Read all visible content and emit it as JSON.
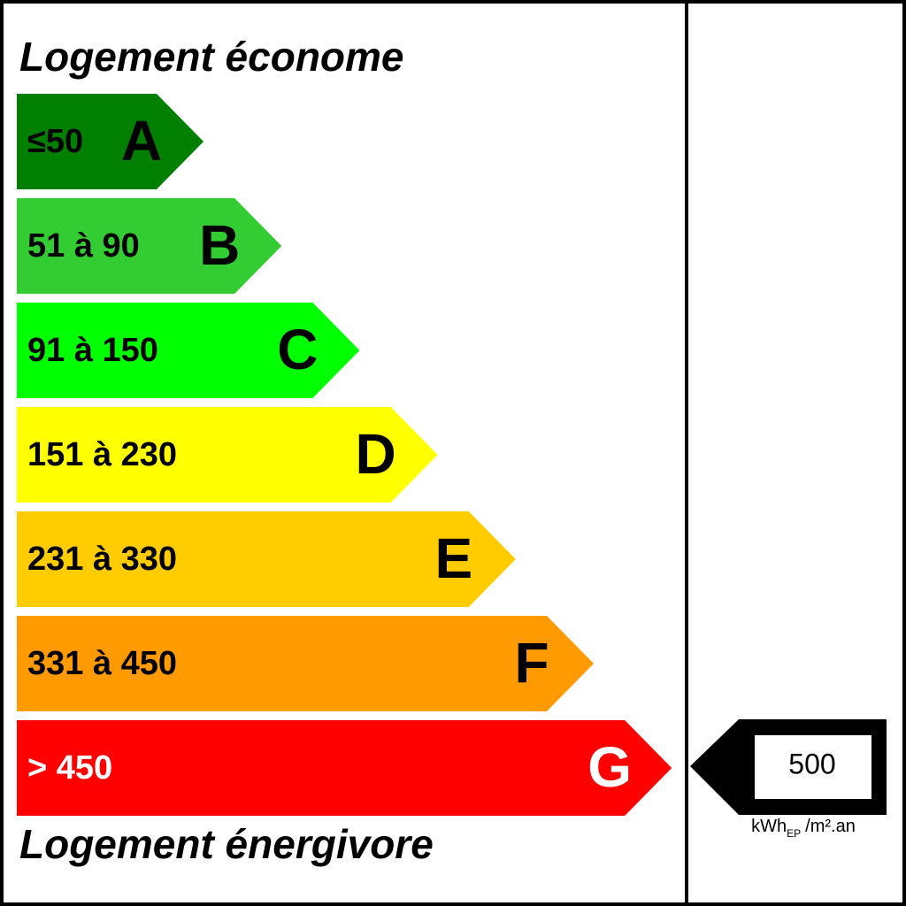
{
  "header": {
    "title": "Logement économe"
  },
  "footer": {
    "title": "Logement énergivore"
  },
  "classes": [
    {
      "range": "≤50",
      "letter": "A",
      "color": "#007f00",
      "text_color": "#000000"
    },
    {
      "range": "51 à 90",
      "letter": "B",
      "color": "#33cc33",
      "text_color": "#000000"
    },
    {
      "range": "91 à 150",
      "letter": "C",
      "color": "#00ff00",
      "text_color": "#000000"
    },
    {
      "range": "151 à 230",
      "letter": "D",
      "color": "#ffff00",
      "text_color": "#000000"
    },
    {
      "range": "231 à 330",
      "letter": "E",
      "color": "#ffcc00",
      "text_color": "#000000"
    },
    {
      "range": "331 à 450",
      "letter": "F",
      "color": "#ff9a00",
      "text_color": "#000000"
    },
    {
      "range": "> 450",
      "letter": "G",
      "color": "#ff0000",
      "text_color": "#ffffff"
    }
  ],
  "indicator": {
    "value": "500",
    "unit": "kWh",
    "unit_sub": "EP",
    "unit_rest": "/m².an"
  }
}
